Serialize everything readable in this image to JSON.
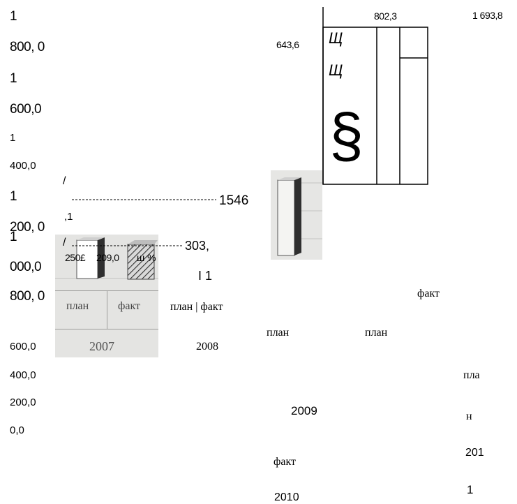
{
  "chart_data": {
    "type": "bar",
    "y_ticks": [
      {
        "top": "1",
        "bottom": "800, 0"
      },
      {
        "top": "1",
        "bottom": "600,0"
      },
      {
        "top": "1",
        "bottom": "400,0"
      },
      {
        "top": "1",
        "bottom": "200, 0"
      },
      {
        "top": "1",
        "bottom": "000,0"
      },
      {
        "top": "",
        "bottom": "800, 0"
      },
      {
        "top": "",
        "bottom": "600,0"
      },
      {
        "top": "",
        "bottom": "400,0"
      },
      {
        "top": "",
        "bottom": "200,0"
      },
      {
        "top": "",
        "bottom": "0,0"
      }
    ],
    "categories": [
      {
        "year": "2007",
        "items": [
          "план",
          "факт"
        ]
      },
      {
        "year": "2008",
        "items": [
          "план",
          "факт"
        ]
      },
      {
        "year": "2009",
        "items": [
          "план",
          "факт"
        ]
      },
      {
        "year": "2010",
        "items": [
          "план",
          "факт"
        ]
      },
      {
        "year": "201 1",
        "items": [
          "пла н",
          "факт"
        ]
      }
    ],
    "data_labels": {
      "l1546": "1546",
      "l1546_cont": ",1",
      "l303": "303,",
      "l250": "250£",
      "l209": "209,0",
      "pct": "ш %",
      "l643": "643,6",
      "l802": "802,3",
      "l1693": "1 693,8",
      "l_i1": "I 1"
    },
    "glyphs": {
      "slash1": "/",
      "slash2": "/",
      "sh1": "Щ",
      "sh2": "Щ",
      "section": "§"
    },
    "labels": {
      "plan_2007": "план",
      "fact_2007": "факт",
      "year_2007": "2007",
      "planfact_2008": "план | факт",
      "year_2008": "2008",
      "plan_a": "план",
      "plan_b": "план",
      "fact_right": "факт",
      "year_2009": "2009",
      "fact_2010": "факт",
      "year_2010": "2010",
      "pla": "пла",
      "n": "н",
      "y201": "201",
      "y1": "1"
    },
    "colors": {
      "photo_bg": "#e4e4e2",
      "bar_light": "#ffffff",
      "bar_dark": "#3a3a3a",
      "ink": "#000000"
    }
  }
}
